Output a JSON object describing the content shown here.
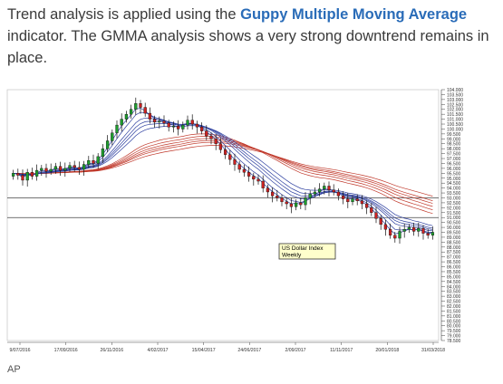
{
  "article": {
    "text_before": "Trend analysis is applied using the ",
    "link_text": "Guppy Multiple Moving Average",
    "text_after": " indicator. The GMMA analysis shows a very strong downtrend remains in place.",
    "credit": "AP"
  },
  "chart_data": {
    "type": "candlestick",
    "annotation": [
      "US Dollar Index",
      "Weekly"
    ],
    "x_tick_labels": [
      "9/07/2016",
      "17/09/2016",
      "26/11/2016",
      "4/02/2017",
      "15/04/2017",
      "24/06/2017",
      "2/09/2017",
      "11/11/2017",
      "20/01/2018",
      "31/03/2018"
    ],
    "y_tick_labels": [
      "104.000",
      "103.500",
      "103.000",
      "102.500",
      "102.000",
      "101.500",
      "101.000",
      "100.500",
      "100.000",
      "99.500",
      "99.000",
      "98.500",
      "98.000",
      "97.500",
      "97.000",
      "96.500",
      "96.000",
      "95.500",
      "95.000",
      "94.500",
      "94.000",
      "93.500",
      "93.000",
      "92.500",
      "92.000",
      "91.500",
      "91.000",
      "90.500",
      "90.000",
      "89.500",
      "89.000",
      "88.500",
      "88.000",
      "87.500",
      "87.000",
      "86.500",
      "86.000",
      "85.500",
      "85.000",
      "84.500",
      "84.000",
      "83.500",
      "83.000",
      "82.500",
      "82.000",
      "81.500",
      "81.000",
      "80.500",
      "80.000",
      "79.500",
      "79.000",
      "78.500"
    ],
    "ylim": [
      78.5,
      104.0
    ],
    "horizontal_lines": [
      93.0,
      91.0
    ],
    "close_values": [
      95.5,
      95.3,
      94.8,
      95.6,
      95.2,
      95.8,
      96.0,
      95.7,
      95.9,
      96.2,
      95.8,
      96.0,
      96.3,
      96.1,
      95.9,
      96.4,
      96.8,
      96.5,
      97.2,
      98.0,
      98.8,
      99.6,
      100.4,
      101.0,
      101.5,
      102.0,
      102.6,
      102.2,
      101.6,
      101.0,
      100.7,
      100.8,
      100.6,
      100.2,
      100.3,
      100.0,
      100.4,
      100.9,
      100.5,
      100.2,
      99.8,
      99.3,
      99.0,
      98.5,
      97.9,
      97.4,
      96.9,
      96.4,
      95.9,
      95.6,
      95.2,
      94.9,
      94.7,
      94.0,
      93.6,
      93.2,
      93.0,
      92.6,
      92.4,
      92.1,
      92.5,
      92.3,
      93.0,
      93.4,
      93.6,
      93.9,
      94.2,
      93.8,
      93.6,
      93.2,
      92.9,
      92.6,
      92.9,
      92.7,
      92.4,
      92.0,
      91.5,
      90.9,
      90.3,
      89.8,
      89.2,
      88.9,
      89.6,
      89.8,
      90.0,
      89.6,
      89.9,
      89.4,
      89.2,
      89.5
    ]
  }
}
